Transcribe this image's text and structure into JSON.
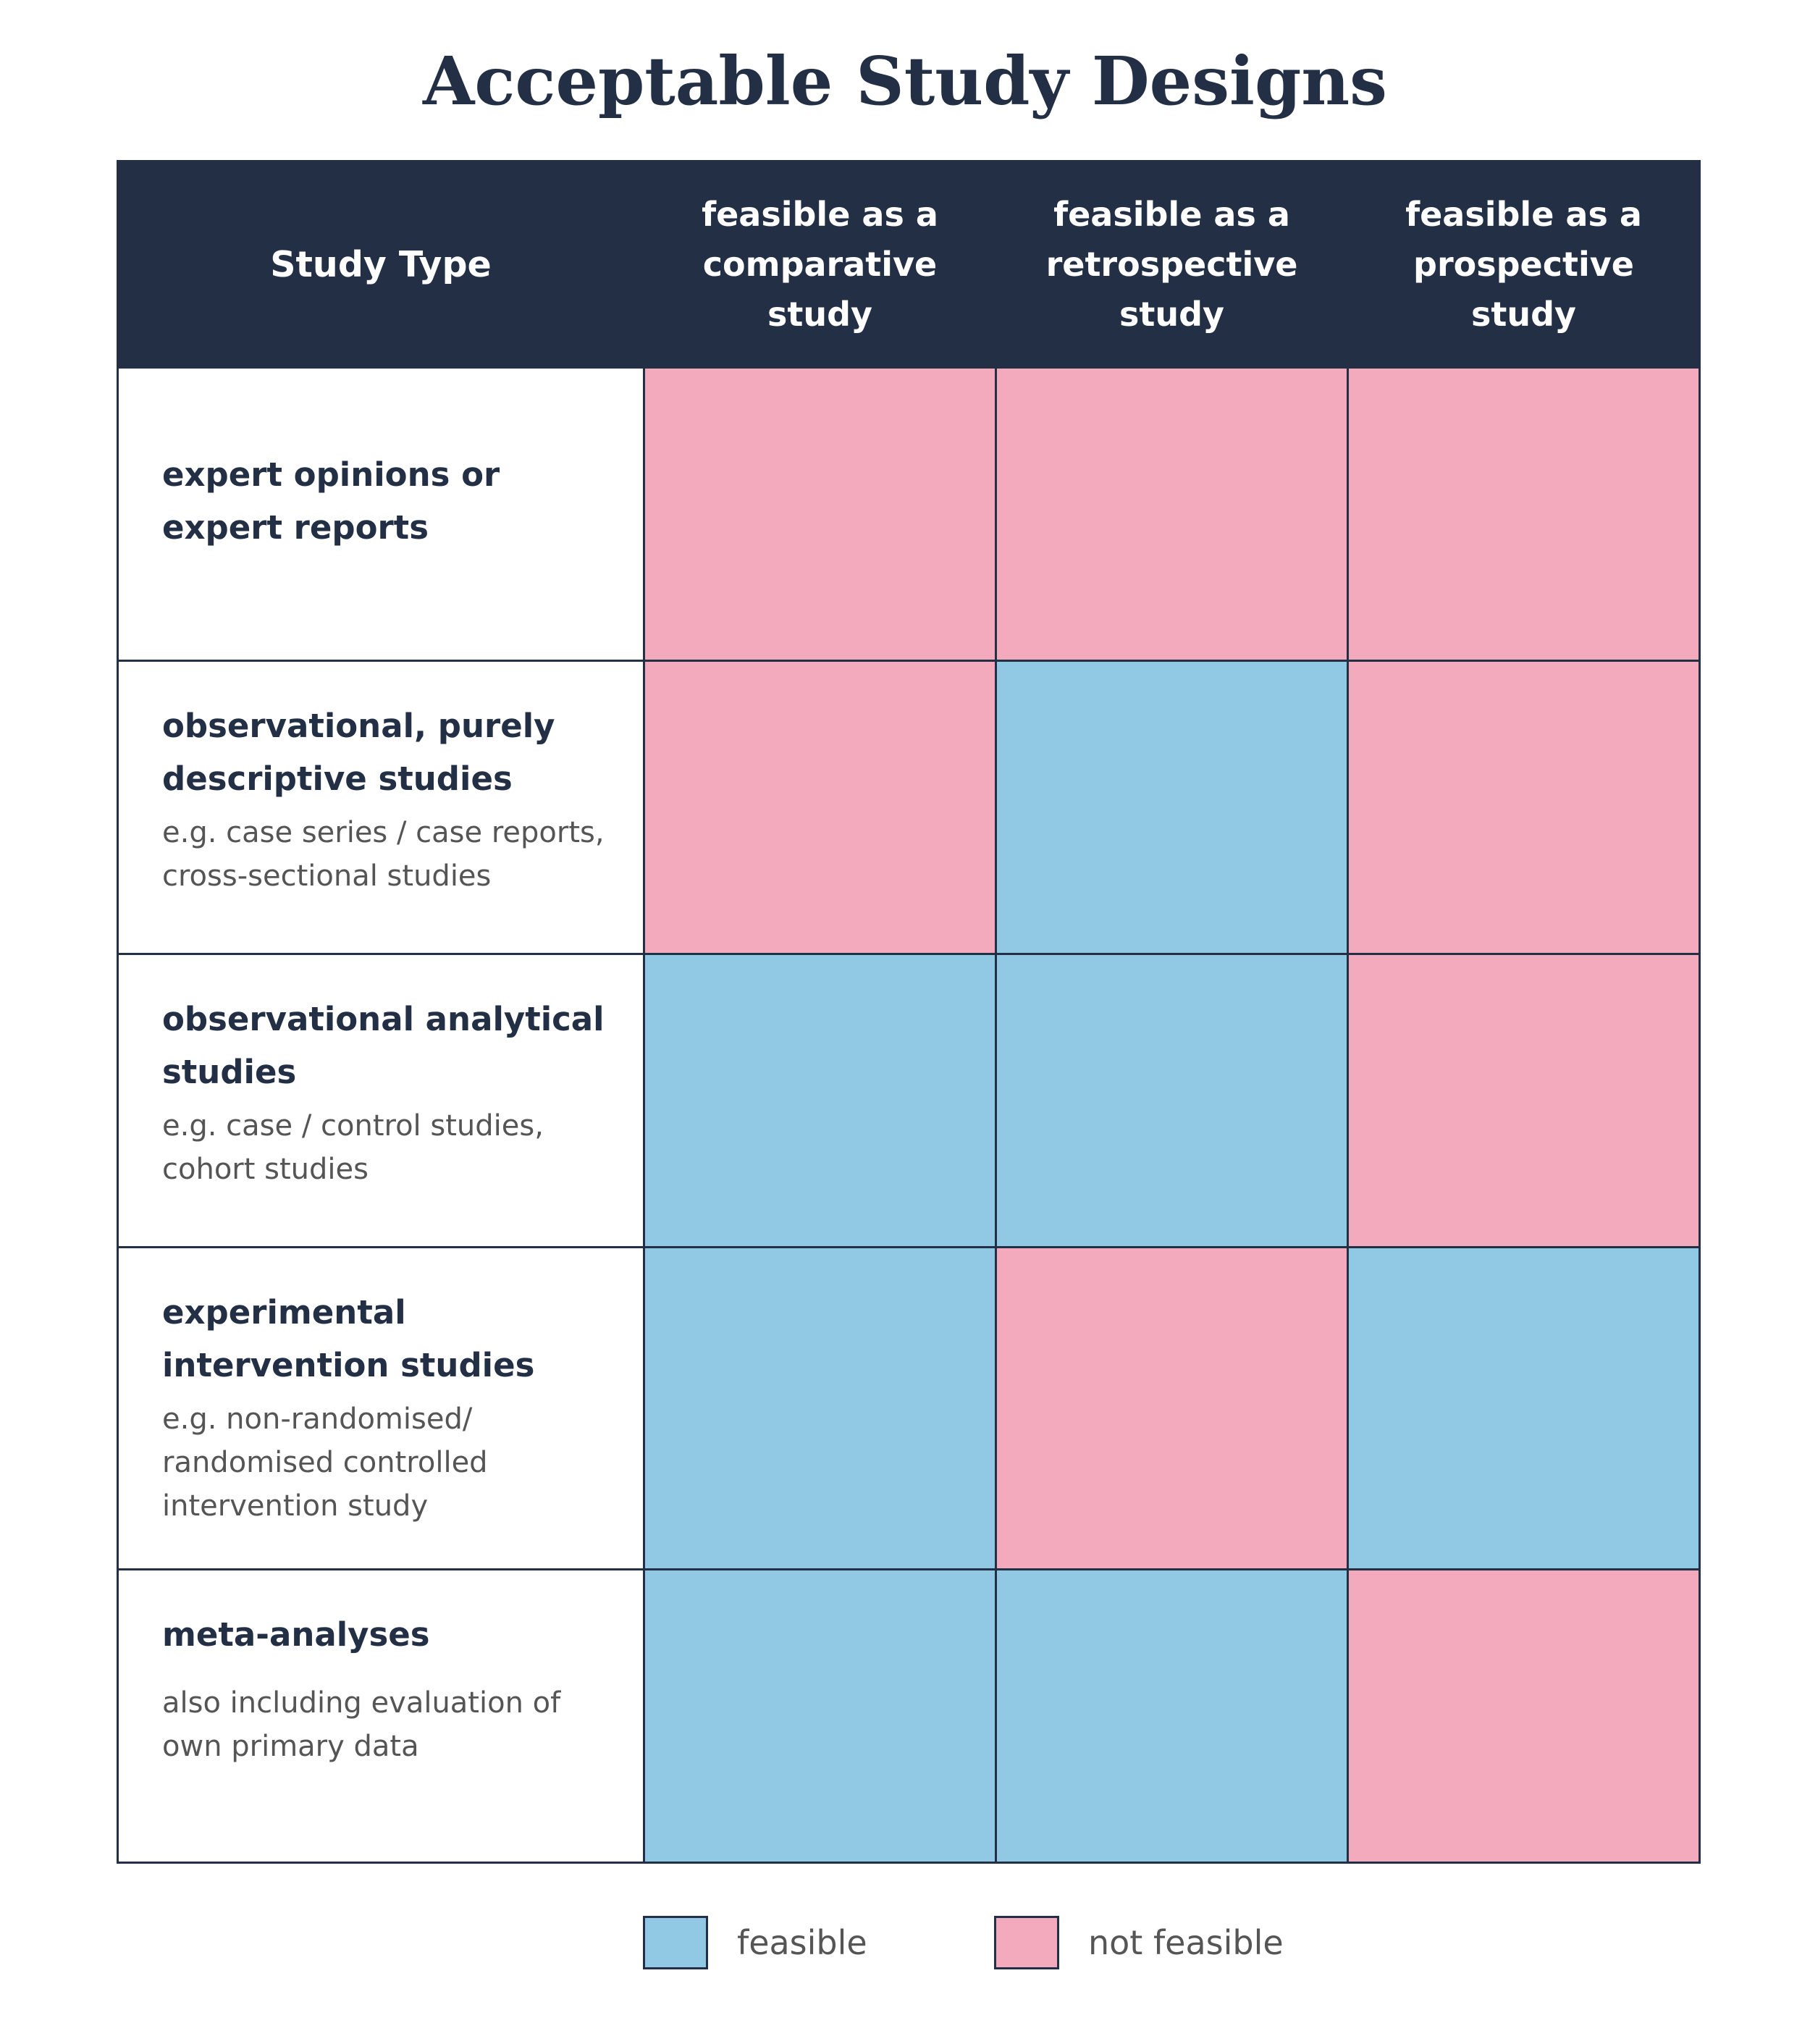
{
  "title": "Acceptable Study Designs",
  "colors": {
    "feasible": "#91c8e3",
    "not_feasible": "#f4aabd",
    "header_bg": "#222f45"
  },
  "table": {
    "headers": [
      "Study Type",
      "feasible as a comparative study",
      "feasible as a retrospective study",
      "feasible as a prospective study"
    ],
    "rows": [
      {
        "title": "expert opinions or expert reports",
        "description": "",
        "cells": [
          "not_feasible",
          "not_feasible",
          "not_feasible"
        ]
      },
      {
        "title": "observational, purely descriptive studies",
        "description": "e.g. case series / case reports, cross-sectional studies",
        "cells": [
          "not_feasible",
          "feasible",
          "not_feasible"
        ]
      },
      {
        "title": "observational analytical studies",
        "description": "e.g. case / control studies, cohort studies",
        "cells": [
          "feasible",
          "feasible",
          "not_feasible"
        ]
      },
      {
        "title": "experimental intervention studies",
        "description": "e.g. non-randomised/ randomised controlled intervention study",
        "cells": [
          "feasible",
          "not_feasible",
          "feasible"
        ]
      },
      {
        "title": "meta-analyses",
        "description": "also including evaluation of own primary data",
        "cells": [
          "feasible",
          "feasible",
          "not_feasible"
        ]
      }
    ]
  },
  "legend": {
    "feasible": "feasible",
    "not_feasible": "not feasible"
  }
}
